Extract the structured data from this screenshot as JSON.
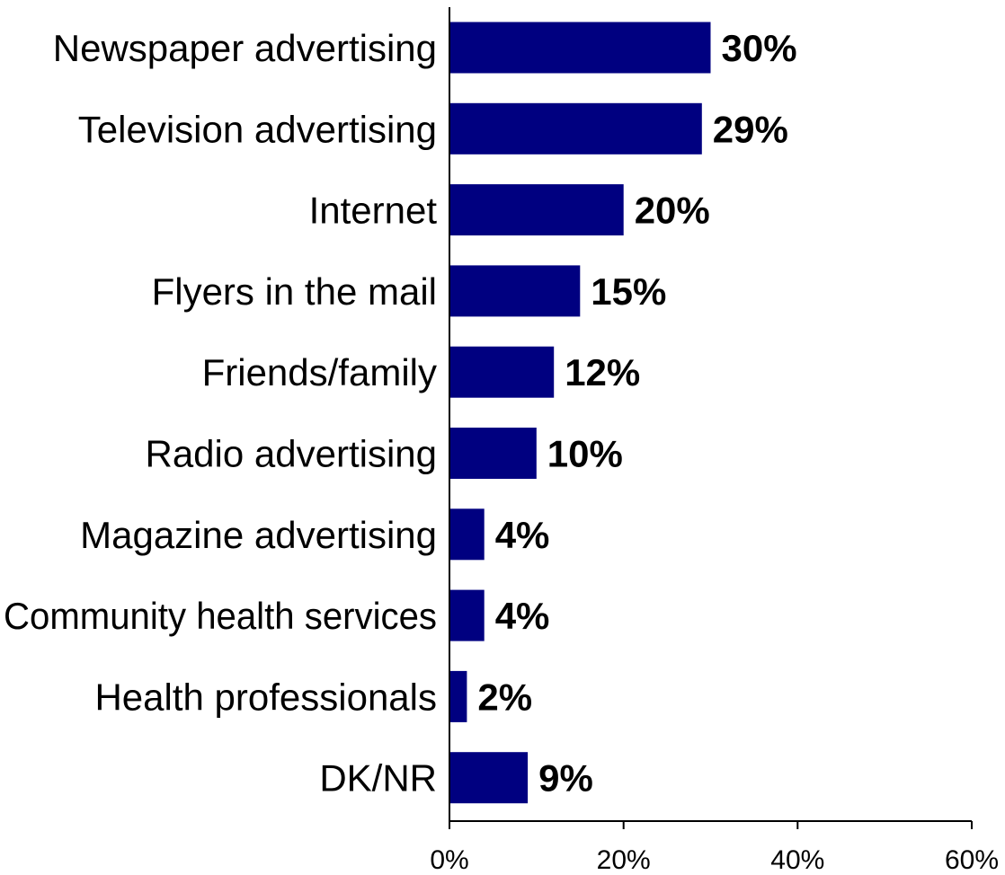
{
  "chart_data": {
    "type": "bar",
    "orientation": "horizontal",
    "title": "",
    "xlabel": "",
    "ylabel": "",
    "categories": [
      "Newspaper advertising",
      "Television advertising",
      "Internet",
      "Flyers in the mail",
      "Friends/family",
      "Radio advertising",
      "Magazine advertising",
      "Community health services",
      "Health professionals",
      "DK/NR"
    ],
    "values": [
      30,
      29,
      20,
      15,
      12,
      10,
      4,
      4,
      2,
      9
    ],
    "value_labels": [
      "30%",
      "29%",
      "20%",
      "15%",
      "12%",
      "10%",
      "4%",
      "4%",
      "2%",
      "9%"
    ],
    "xlim": [
      0,
      60
    ],
    "x_ticks": [
      0,
      20,
      40,
      60
    ],
    "x_tick_labels": [
      "0%",
      "20%",
      "40%",
      "60%"
    ],
    "grid": false,
    "legend": "none",
    "colors": {
      "bar": "#000080",
      "axis": "#000000"
    }
  }
}
